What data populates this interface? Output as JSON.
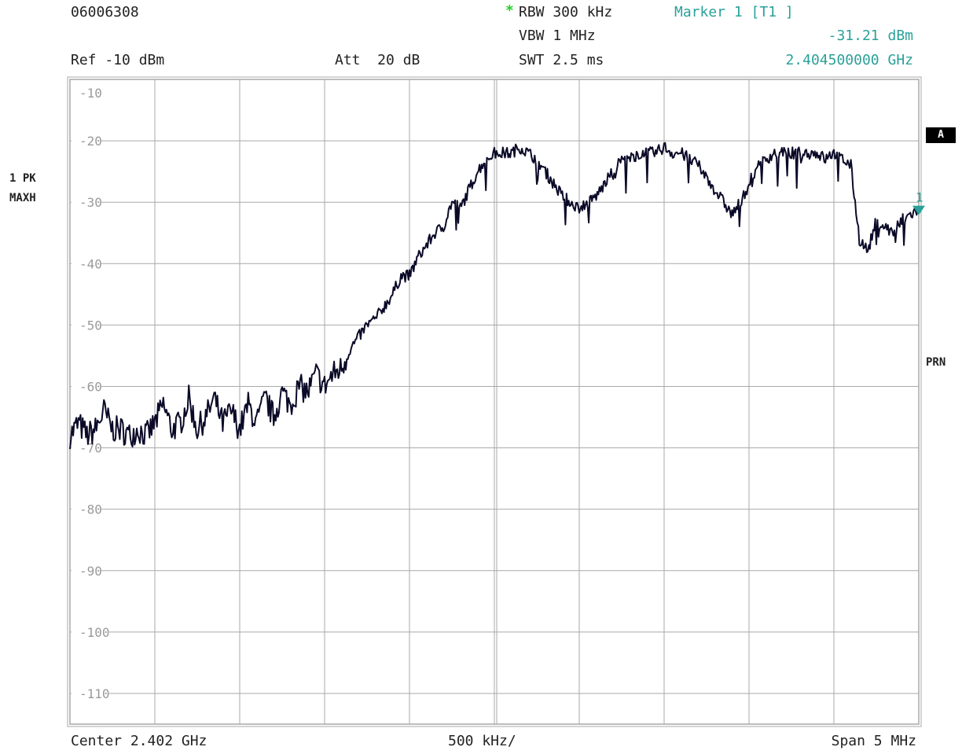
{
  "header": {
    "id": "06006308",
    "ref": "Ref -10 dBm",
    "att": "Att  20 dB",
    "rbw": "RBW 300 kHz",
    "vbw": "VBW 1 MHz",
    "swt": "SWT 2.5 ms",
    "marker_title": "Marker 1 [T1 ]",
    "marker_level": "-31.21 dBm",
    "marker_freq": "2.404500000 GHz"
  },
  "side": {
    "trace_mode_1": "1 PK",
    "trace_mode_2": "MAXH",
    "badge_a": "A",
    "prn": "PRN"
  },
  "footer": {
    "center": "Center 2.402 GHz",
    "div": "500 kHz/",
    "span": "Span 5 MHz"
  },
  "colors": {
    "trace": "#0a0a28",
    "grid": "#a9a9a9",
    "marker": "#2aa198"
  },
  "chart_data": {
    "type": "line",
    "title": "",
    "xlabel": "",
    "ylabel": "",
    "xlim": [
      2.3995,
      2.4045
    ],
    "ylim": [
      -115,
      -10
    ],
    "yticks": [
      "-10",
      "-20",
      "-30",
      "-40",
      "-50",
      "-60",
      "-70",
      "-80",
      "-90",
      "-100",
      "-110"
    ],
    "grid": true,
    "marker": {
      "label": "1",
      "x": 2.4045,
      "y": -31.21
    },
    "series": [
      {
        "x": [
          2.3995,
          2.39955,
          2.3996,
          2.39965,
          2.3997,
          2.39975,
          2.3998,
          2.39985,
          2.3999,
          2.39995,
          2.4,
          2.40005,
          2.4001,
          2.40015,
          2.4002,
          2.40025,
          2.4003,
          2.40035,
          2.4004,
          2.40045,
          2.4005,
          2.40055,
          2.4006,
          2.40065,
          2.4007,
          2.40075,
          2.4008,
          2.40085,
          2.4009,
          2.40095,
          2.401,
          2.40105,
          2.4011,
          2.40115,
          2.4012,
          2.40125,
          2.4013,
          2.40135,
          2.4014,
          2.40145,
          2.4015,
          2.40155,
          2.4016,
          2.40165,
          2.4017,
          2.40175,
          2.4018,
          2.40185,
          2.4019,
          2.40195,
          2.402,
          2.40205,
          2.4021,
          2.40215,
          2.4022,
          2.40225,
          2.4023,
          2.40235,
          2.4024,
          2.40245,
          2.4025,
          2.40255,
          2.4026,
          2.40265,
          2.4027,
          2.40275,
          2.4028,
          2.40285,
          2.4029,
          2.40295,
          2.403,
          2.40305,
          2.4031,
          2.40315,
          2.4032,
          2.40325,
          2.4033,
          2.40335,
          2.4034,
          2.40345,
          2.4035,
          2.40355,
          2.4036,
          2.40365,
          2.4037,
          2.40375,
          2.4038,
          2.40385,
          2.4039,
          2.40395,
          2.404,
          2.40405,
          2.4041,
          2.40415,
          2.4042,
          2.40425,
          2.4043,
          2.40435,
          2.4044,
          2.40445,
          2.4045
        ],
        "y": [
          -68,
          -66,
          -68,
          -67,
          -64,
          -67,
          -67,
          -68,
          -67,
          -68,
          -66,
          -63,
          -67,
          -66,
          -62,
          -67,
          -65,
          -62,
          -66,
          -64,
          -67,
          -63,
          -66,
          -62,
          -65,
          -61,
          -63,
          -60,
          -61,
          -58,
          -60,
          -58,
          -57,
          -54,
          -52,
          -50,
          -49,
          -47,
          -45,
          -42,
          -42,
          -39,
          -37,
          -35,
          -34,
          -30,
          -31,
          -28,
          -25,
          -23,
          -22,
          -22,
          -22,
          -21,
          -22,
          -23,
          -25,
          -27,
          -29,
          -30,
          -31,
          -30,
          -29,
          -27,
          -25,
          -23,
          -23,
          -22,
          -22,
          -22,
          -21,
          -22,
          -22,
          -23,
          -24,
          -26,
          -28,
          -30,
          -32,
          -30,
          -27,
          -24,
          -23,
          -22,
          -22,
          -22,
          -22,
          -22,
          -22,
          -23,
          -22,
          -23,
          -24,
          -36,
          -38,
          -33,
          -34,
          -35,
          -33,
          -32,
          -31.21
        ]
      }
    ]
  }
}
